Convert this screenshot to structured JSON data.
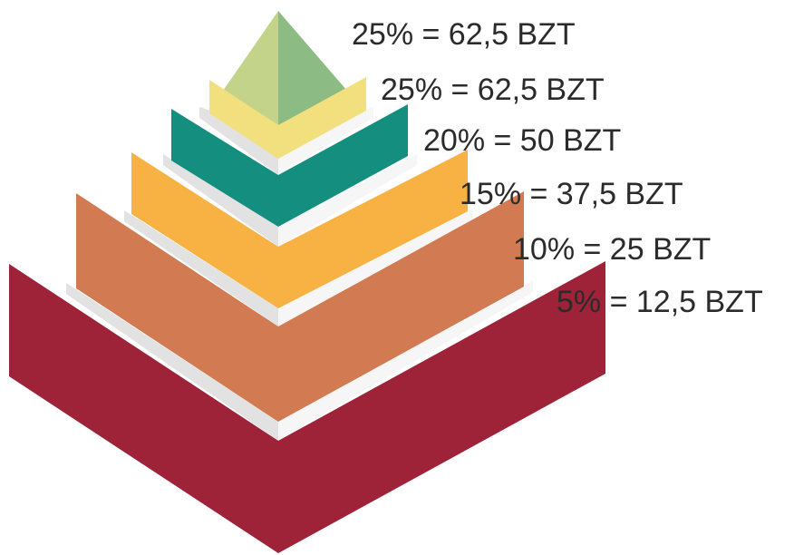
{
  "pyramid": {
    "tiers": [
      {
        "label": "25% = 62,5 BZT",
        "percent": 25,
        "amount": 62.5,
        "colors": {
          "left": "#c3d38a",
          "right": "#8dbb84"
        }
      },
      {
        "label": "25% = 62,5 BZT",
        "percent": 25,
        "amount": 62.5,
        "colors": {
          "left": "#f2df7d",
          "right": "#f2df7d"
        }
      },
      {
        "label": "20% = 50 BZT",
        "percent": 20,
        "amount": 50,
        "colors": {
          "left": "#148f7f",
          "right": "#148f7f"
        }
      },
      {
        "label": "15% = 37,5 BZT",
        "percent": 15,
        "amount": 37.5,
        "colors": {
          "left": "#f8b143",
          "right": "#f8b143"
        }
      },
      {
        "label": "10% = 25 BZT",
        "percent": 10,
        "amount": 25,
        "colors": {
          "left": "#d27a52",
          "right": "#d27a52"
        }
      },
      {
        "label": "5% = 12,5 BZT",
        "percent": 5,
        "amount": 12.5,
        "colors": {
          "left": "#9e2238",
          "right": "#9e2238"
        }
      }
    ],
    "separator_colors": {
      "left": "#e2e2e2",
      "right": "#f6f6f6"
    },
    "unit": "BZT"
  }
}
